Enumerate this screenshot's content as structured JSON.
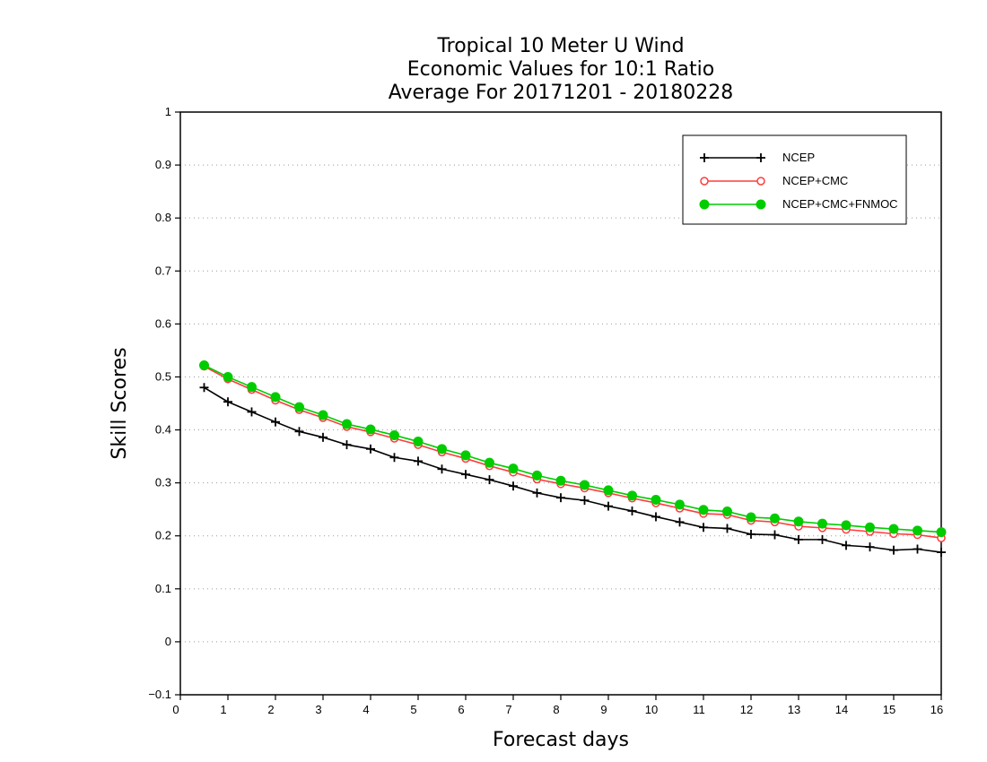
{
  "chart_data": {
    "type": "line",
    "title_lines": [
      "Tropical 10 Meter U Wind",
      "Economic Values for 10:1 Ratio",
      "Average For 20171201 - 20180228"
    ],
    "xlabel": "Forecast days",
    "ylabel": "Skill Scores",
    "xlim": [
      0,
      16
    ],
    "ylim": [
      -0.1,
      1
    ],
    "xticks": [
      0,
      1,
      2,
      3,
      4,
      5,
      6,
      7,
      8,
      9,
      10,
      11,
      12,
      13,
      14,
      15,
      16
    ],
    "xtick_labels": [
      "0",
      "1",
      "2",
      "3",
      "4",
      "5",
      "6",
      "7",
      "8",
      "9",
      "10",
      "11",
      "12",
      "13",
      "14",
      "15",
      "16"
    ],
    "yticks": [
      -0.1,
      0,
      0.1,
      0.2,
      0.3,
      0.4,
      0.5,
      0.6,
      0.7,
      0.8,
      0.9,
      1
    ],
    "ytick_labels": [
      "−0.1",
      "0",
      "0.1",
      "0.2",
      "0.3",
      "0.4",
      "0.5",
      "0.6",
      "0.7",
      "0.8",
      "0.9",
      "1"
    ],
    "grid": "horizontal dotted",
    "legend_position": "top-right",
    "x": [
      0.5,
      1,
      1.5,
      2,
      2.5,
      3,
      3.5,
      4,
      4.5,
      5,
      5.5,
      6,
      6.5,
      7,
      7.5,
      8,
      8.5,
      9,
      9.5,
      10,
      10.5,
      11,
      11.5,
      12,
      12.5,
      13,
      13.5,
      14,
      14.5,
      15,
      15.5,
      16
    ],
    "series": [
      {
        "name": "NCEP",
        "color": "#000000",
        "marker": "plus",
        "values": [
          0.48,
          0.453,
          0.434,
          0.415,
          0.397,
          0.386,
          0.372,
          0.364,
          0.348,
          0.341,
          0.326,
          0.316,
          0.306,
          0.294,
          0.281,
          0.272,
          0.267,
          0.256,
          0.247,
          0.236,
          0.226,
          0.216,
          0.214,
          0.203,
          0.202,
          0.193,
          0.193,
          0.182,
          0.179,
          0.173,
          0.175,
          0.169
        ]
      },
      {
        "name": "NCEP+CMC",
        "color": "#ff3b3b",
        "marker": "open-circle",
        "values": [
          0.52,
          0.496,
          0.476,
          0.456,
          0.438,
          0.423,
          0.406,
          0.396,
          0.384,
          0.372,
          0.358,
          0.346,
          0.332,
          0.32,
          0.307,
          0.298,
          0.29,
          0.281,
          0.271,
          0.262,
          0.252,
          0.242,
          0.24,
          0.229,
          0.226,
          0.218,
          0.215,
          0.212,
          0.208,
          0.204,
          0.202,
          0.196
        ]
      },
      {
        "name": "NCEP+CMC+FNMOC",
        "color": "#00cc00",
        "marker": "filled-circle",
        "values": [
          0.522,
          0.5,
          0.481,
          0.462,
          0.443,
          0.428,
          0.411,
          0.401,
          0.39,
          0.378,
          0.364,
          0.352,
          0.338,
          0.327,
          0.314,
          0.304,
          0.296,
          0.286,
          0.276,
          0.268,
          0.259,
          0.249,
          0.246,
          0.235,
          0.233,
          0.227,
          0.223,
          0.22,
          0.216,
          0.213,
          0.21,
          0.207
        ]
      }
    ]
  }
}
